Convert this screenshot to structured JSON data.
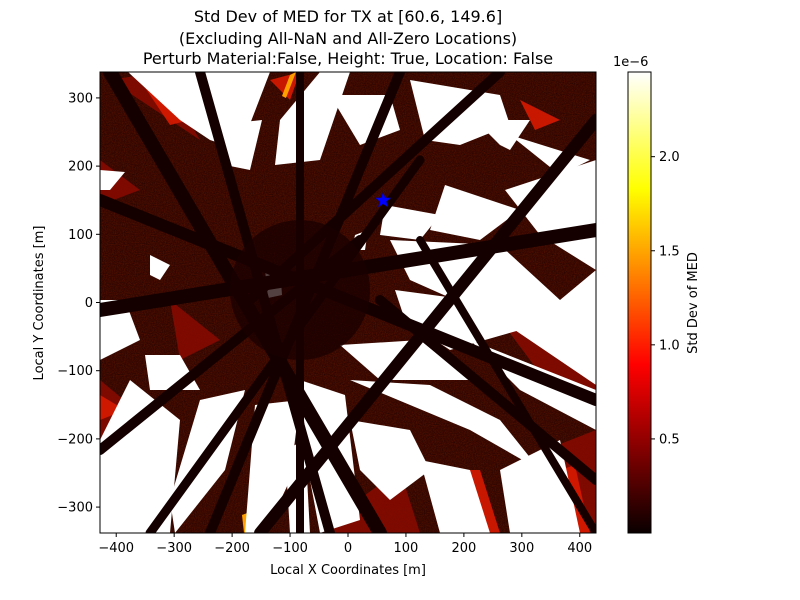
{
  "chart_data": {
    "type": "heatmap",
    "title_lines": [
      "Std Dev of MED for TX at [60.6, 149.6]",
      "(Excluding All-NaN and All-Zero Locations)",
      "Perturb Material:False, Height: True, Location: False"
    ],
    "xlabel": "Local X Coordinates [m]",
    "ylabel": "Local Y Coordinates [m]",
    "xlim": [
      -428,
      428
    ],
    "ylim": [
      -338,
      338
    ],
    "xticks": [
      -400,
      -300,
      -200,
      -100,
      0,
      100,
      200,
      300,
      400
    ],
    "yticks": [
      -300,
      -200,
      -100,
      0,
      100,
      200,
      300
    ],
    "colormap": "hot",
    "nan_color": "#ffffff",
    "colorbar": {
      "label": "Std Dev of MED",
      "offset_text": "1e−6",
      "range": [
        0,
        2.45e-06
      ],
      "ticks": [
        0.5,
        1.0,
        1.5,
        2.0
      ],
      "tick_labels": [
        "0.5",
        "1.0",
        "1.5",
        "2.0"
      ]
    },
    "tx_marker": {
      "x": 60.6,
      "y": 149.6,
      "symbol": "star",
      "color": "#0000ff"
    },
    "colors": {
      "axis": "#000000",
      "background": "#1a0000"
    }
  }
}
